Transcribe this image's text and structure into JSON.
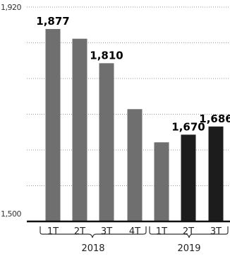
{
  "chart_data": {
    "type": "bar",
    "ylim": [
      1500,
      1920
    ],
    "yticks": [
      1920,
      1500
    ],
    "ytick_labels": [
      "1,920",
      "1,500"
    ],
    "grid": true,
    "groups": [
      {
        "label": "2018",
        "categories": [
          "1T",
          "2T",
          "3T",
          "4T"
        ]
      },
      {
        "label": "2019",
        "categories": [
          "1T",
          "2T",
          "3T"
        ]
      }
    ],
    "category_labels": [
      "1T",
      "2T",
      "3T",
      "4T",
      "1T",
      "2T",
      "3T"
    ],
    "values": [
      1877,
      1858,
      1810,
      1720,
      1655,
      1670,
      1686
    ],
    "data_labels": [
      "1,877",
      "",
      "1,810",
      "",
      "",
      "1,670",
      "1,686"
    ],
    "bar_colors": [
      "#6f6f6f",
      "#6f6f6f",
      "#6f6f6f",
      "#6f6f6f",
      "#6f6f6f",
      "#1c1c1c",
      "#1c1c1c"
    ]
  }
}
